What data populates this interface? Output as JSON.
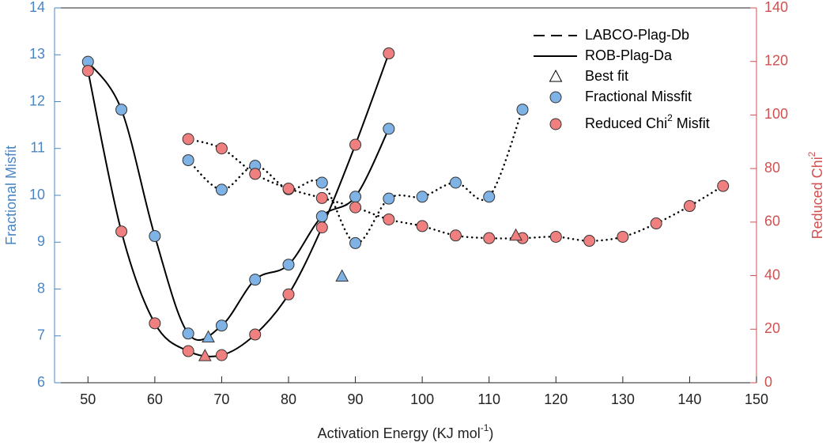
{
  "chart_data": {
    "type": "line",
    "xlabel": [
      "Activation Energy (KJ mol",
      "-1",
      ")"
    ],
    "ylabel": [
      "Fractional Misfit"
    ],
    "y2label": [
      "Reduced Chi",
      "2"
    ],
    "xlim": [
      45,
      150
    ],
    "xticks": [
      50,
      60,
      70,
      80,
      90,
      100,
      110,
      120,
      130,
      140,
      150
    ],
    "ylim": [
      6,
      14
    ],
    "yticks": [
      6,
      7,
      8,
      9,
      10,
      11,
      12,
      13,
      14
    ],
    "y2lim": [
      0,
      140
    ],
    "y2ticks": [
      0,
      20,
      40,
      60,
      80,
      100,
      120,
      140
    ],
    "ycolor": "#4a86c5",
    "y2color": "#d05050",
    "series": [
      {
        "axis": "y",
        "line": "solid",
        "color": "#7fb2e5",
        "x": [
          50,
          55,
          60,
          65,
          70,
          75,
          80,
          85,
          90,
          95
        ],
        "values": [
          12.85,
          11.83,
          9.13,
          7.05,
          7.22,
          8.2,
          8.52,
          9.55,
          9.97,
          11.42
        ]
      },
      {
        "axis": "y2",
        "line": "solid",
        "color": "#f08080",
        "x": [
          50,
          55,
          60,
          65,
          70,
          75,
          80,
          85,
          90,
          95
        ],
        "values": [
          116.5,
          56.5,
          22.2,
          11.8,
          10.3,
          18,
          33,
          58,
          88.9,
          123
        ]
      },
      {
        "axis": "y",
        "line": "dotted",
        "color": "#7fb2e5",
        "x": [
          65,
          70,
          75,
          80,
          85,
          90,
          95,
          100,
          105,
          110,
          115
        ],
        "values": [
          10.75,
          10.12,
          10.63,
          10.13,
          10.27,
          8.98,
          9.93,
          9.97,
          10.27,
          9.97,
          11.83
        ]
      },
      {
        "axis": "y2",
        "line": "dotted",
        "color": "#f08080",
        "x": [
          65,
          70,
          75,
          80,
          85,
          90,
          95,
          100,
          105,
          110,
          115,
          120,
          125,
          130,
          135,
          140,
          145
        ],
        "values": [
          91,
          87.5,
          78,
          72.5,
          69,
          65.5,
          61,
          58.5,
          55,
          54,
          54,
          54.5,
          53,
          54.5,
          59.5,
          66,
          73.5
        ]
      }
    ],
    "best_fit": [
      {
        "x": 68,
        "value": 6.97,
        "axis": "y",
        "color": "#7fb2e5"
      },
      {
        "x": 67.5,
        "value": 10,
        "axis": "y2",
        "color": "#f08080"
      },
      {
        "x": 88,
        "value": 8.27,
        "axis": "y",
        "color": "#7fb2e5"
      },
      {
        "x": 114,
        "value": 55,
        "axis": "y2",
        "color": "#f08080"
      }
    ],
    "legend": [
      {
        "label": [
          "LABCO-Plag-Db"
        ],
        "symbol": "dashed"
      },
      {
        "label": [
          "ROB-Plag-Da"
        ],
        "symbol": "solid"
      },
      {
        "label": [
          "Best fit"
        ],
        "symbol": "triangle"
      },
      {
        "label": [
          "Fractional Missfit"
        ],
        "symbol": "circle",
        "color": "#7fb2e5"
      },
      {
        "label": [
          "Reduced Chi",
          "2",
          " Misfit"
        ],
        "symbol": "circle",
        "color": "#f08080"
      }
    ],
    "legend_position": "upper right"
  }
}
